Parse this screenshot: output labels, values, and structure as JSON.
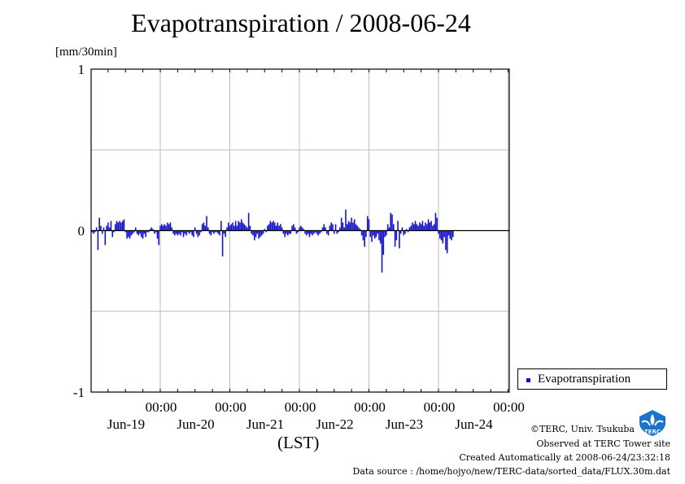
{
  "title": "Evapotranspiration / 2008-06-24",
  "unit_label": "[mm/30min]",
  "xlabel": "(LST)",
  "legend": {
    "label": "Evapotranspiration"
  },
  "footer": {
    "copyright": "©TERC, Univ. Tsukuba",
    "observed": "Observed at TERC Tower site",
    "created": "Created Automatically at 2008-06-24/23:32:18",
    "source": "Data source : /home/hojyo/new/TERC-data/sorted_data/FLUX.30m.dat"
  },
  "logo": {
    "icon": "terc-logo-icon",
    "text": "TERC"
  },
  "colors": {
    "series": "#1414c8",
    "grid": "#bbbbbb",
    "axis": "#000000"
  },
  "chart_data": {
    "type": "bar",
    "title": "Evapotranspiration / 2008-06-24",
    "ylabel": "[mm/30min]",
    "xlabel": "(LST)",
    "ylim": [
      -1,
      1
    ],
    "yticks": [
      "1",
      "0",
      "-1"
    ],
    "grid": true,
    "legend_position": "right",
    "time_ticks": [
      {
        "time": "00:00",
        "date": "Jun-19"
      },
      {
        "time": "00:00",
        "date": "Jun-20"
      },
      {
        "time": "00:00",
        "date": "Jun-21"
      },
      {
        "time": "00:00",
        "date": "Jun-22"
      },
      {
        "time": "00:00",
        "date": "Jun-23"
      },
      {
        "time": "00:00",
        "date": "Jun-24"
      }
    ],
    "series": [
      {
        "name": "Evapotranspiration",
        "start": "2008-06-18 00:00",
        "interval_minutes": 30,
        "values": [
          0.05,
          -0.01,
          -0.02,
          -0.01,
          0.02,
          -0.12,
          0.08,
          0.03,
          -0.02,
          0.02,
          -0.09,
          0.03,
          0.05,
          0.02,
          0.06,
          -0.04,
          -0.01,
          0.04,
          0.06,
          0.05,
          0.06,
          0.05,
          0.06,
          0.07,
          -0.01,
          -0.05,
          -0.04,
          -0.05,
          -0.03,
          -0.02,
          -0.01,
          0.02,
          -0.02,
          -0.03,
          -0.02,
          -0.04,
          -0.05,
          -0.02,
          -0.04,
          -0.01,
          -0.01,
          0.01,
          0.02,
          0.01,
          -0.02,
          -0.01,
          -0.05,
          -0.09,
          0.03,
          0.04,
          0.03,
          0.04,
          0.03,
          0.05,
          0.04,
          0.05,
          0.02,
          -0.02,
          -0.03,
          -0.02,
          -0.03,
          -0.02,
          -0.03,
          -0.01,
          -0.04,
          -0.02,
          -0.03,
          -0.01,
          -0.02,
          -0.01,
          -0.03,
          -0.04,
          0.02,
          -0.02,
          -0.04,
          -0.03,
          -0.01,
          0.04,
          0.05,
          0.03,
          0.09,
          0.02,
          -0.02,
          -0.03,
          -0.01,
          -0.02,
          -0.01,
          -0.01,
          -0.02,
          -0.03,
          0.06,
          -0.16,
          -0.02,
          -0.04,
          0.02,
          0.05,
          0.03,
          0.04,
          0.05,
          0.03,
          0.06,
          0.03,
          0.06,
          0.05,
          0.07,
          0.05,
          0.04,
          0.03,
          0.02,
          0.11,
          0.03,
          -0.02,
          -0.03,
          -0.06,
          -0.04,
          -0.02,
          -0.05,
          -0.04,
          -0.03,
          -0.02,
          0.01,
          -0.01,
          0.03,
          0.04,
          0.06,
          0.05,
          0.06,
          0.05,
          0.03,
          0.05,
          0.03,
          0.04,
          0.02,
          -0.02,
          -0.04,
          -0.02,
          -0.03,
          -0.02,
          -0.02,
          0.03,
          0.04,
          0.02,
          -0.02,
          -0.01,
          0.02,
          0.03,
          0.02,
          0.01,
          -0.02,
          -0.03,
          -0.02,
          -0.04,
          -0.02,
          -0.03,
          -0.02,
          -0.01,
          -0.02,
          -0.03,
          -0.02,
          -0.01,
          0.02,
          0.04,
          0.02,
          -0.02,
          -0.03,
          0.03,
          0.05,
          0.04,
          -0.02,
          0.04,
          -0.02,
          -0.01,
          0.02,
          0.08,
          0.05,
          0.02,
          0.13,
          0.04,
          0.06,
          0.05,
          0.08,
          0.05,
          0.07,
          0.04,
          0.03,
          0.02,
          0.01,
          -0.03,
          -0.06,
          -0.1,
          -0.04,
          0.09,
          0.07,
          -0.04,
          -0.07,
          -0.03,
          -0.05,
          -0.04,
          -0.02,
          -0.06,
          -0.08,
          -0.26,
          -0.15,
          -0.04,
          -0.03,
          0.04,
          0.02,
          0.11,
          0.1,
          0.04,
          -0.1,
          -0.06,
          0.06,
          -0.11,
          -0.02,
          0.02,
          -0.03,
          -0.02,
          0.01,
          -0.01,
          0.02,
          0.03,
          0.05,
          0.04,
          0.06,
          0.04,
          0.03,
          0.05,
          0.04,
          0.06,
          0.03,
          0.05,
          0.04,
          0.07,
          0.05,
          0.06,
          0.03,
          0.04,
          0.11,
          0.08,
          -0.02,
          -0.05,
          -0.06,
          -0.08,
          -0.04,
          -0.12,
          -0.14,
          -0.03,
          -0.05,
          -0.06,
          -0.04
        ]
      }
    ]
  }
}
